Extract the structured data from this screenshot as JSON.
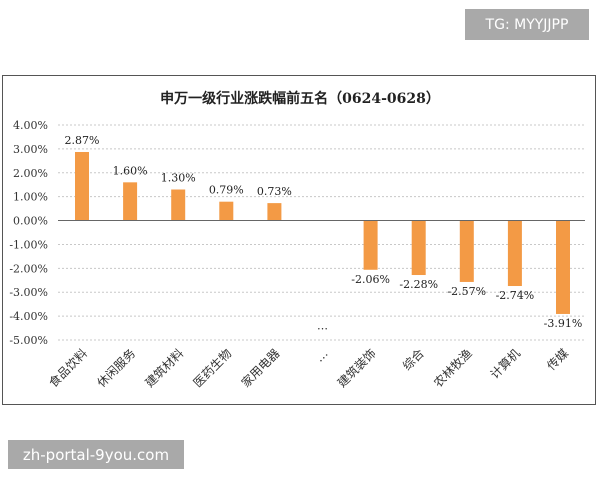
{
  "watermarks": {
    "top_right": "TG: MYYJJPP",
    "bottom_left": "zh-portal-9you.com"
  },
  "chart_data": {
    "type": "bar",
    "title": "申万一级行业涨跌幅前五名（0624-0628）",
    "categories": [
      "食品饮料",
      "休闲服务",
      "建筑材料",
      "医药生物",
      "家用电器",
      "…",
      "建筑装饰",
      "综合",
      "农林牧渔",
      "计算机",
      "传媒"
    ],
    "values": [
      2.87,
      1.6,
      1.3,
      0.79,
      0.73,
      null,
      -2.06,
      -2.28,
      -2.57,
      -2.74,
      -3.91
    ],
    "data_labels": [
      "2.87%",
      "1.60%",
      "1.30%",
      "0.79%",
      "0.73%",
      "…",
      "-2.06%",
      "-2.28%",
      "-2.57%",
      "-2.74%",
      "-3.91%"
    ],
    "yticks": [
      "4.00%",
      "3.00%",
      "2.00%",
      "1.00%",
      "0.00%",
      "-1.00%",
      "-2.00%",
      "-3.00%",
      "-4.00%",
      "-5.00%"
    ],
    "ylim": [
      -5,
      4
    ],
    "xlabel": "",
    "ylabel": "",
    "grid": true,
    "bar_color": "#f39a45"
  }
}
